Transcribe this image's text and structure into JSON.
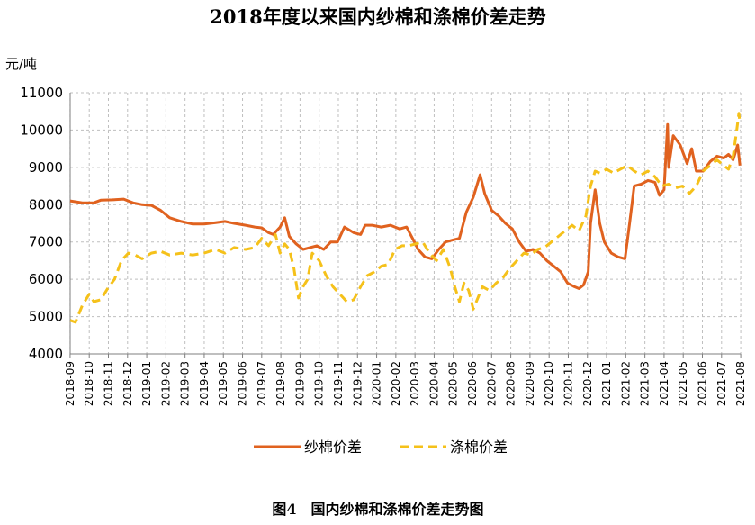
{
  "title": "2018年度以来国内纱棉和涤棉价差走势",
  "unit_label": "元/吨",
  "caption": "图4　国内纱棉和涤棉价差走势图",
  "colors": {
    "yarn": "#e0621f",
    "poly": "#f5c11a",
    "grid": "#bfbfbf",
    "axis": "#7f7f7f"
  },
  "chart_data": {
    "type": "line",
    "title": "2018年度以来国内纱棉和涤棉价差走势",
    "ylabel": "元/吨",
    "ylim": [
      4000,
      11000
    ],
    "yticks": [
      4000,
      5000,
      6000,
      7000,
      8000,
      9000,
      10000,
      11000
    ],
    "x_range": [
      2018.667,
      2021.583
    ],
    "categories": [
      "2018-09",
      "2018-10",
      "2018-11",
      "2018-12",
      "2019-01",
      "2019-02",
      "2019-03",
      "2019-04",
      "2019-05",
      "2019-06",
      "2019-07",
      "2019-08",
      "2019-09",
      "2019-10",
      "2019-11",
      "2019-12",
      "2020-01",
      "2020-02",
      "2020-03",
      "2020-04",
      "2020-05",
      "2020-06",
      "2020-07",
      "2020-08",
      "2020-09",
      "2020-10",
      "2020-11",
      "2020-12",
      "2021-01",
      "2021-02",
      "2021-03",
      "2021-04",
      "2021-05",
      "2021-06",
      "2021-07",
      "2021-08"
    ],
    "grid": true,
    "legend": "bottom",
    "series": [
      {
        "name": "纱棉价差",
        "style": "solid",
        "points": [
          [
            2018.667,
            8100
          ],
          [
            2018.72,
            8050
          ],
          [
            2018.77,
            8050
          ],
          [
            2018.8,
            8120
          ],
          [
            2018.85,
            8130
          ],
          [
            2018.9,
            8150
          ],
          [
            2018.94,
            8050
          ],
          [
            2018.98,
            8000
          ],
          [
            2019.02,
            7980
          ],
          [
            2019.06,
            7850
          ],
          [
            2019.1,
            7650
          ],
          [
            2019.15,
            7550
          ],
          [
            2019.2,
            7480
          ],
          [
            2019.25,
            7480
          ],
          [
            2019.3,
            7520
          ],
          [
            2019.34,
            7550
          ],
          [
            2019.38,
            7500
          ],
          [
            2019.43,
            7450
          ],
          [
            2019.47,
            7400
          ],
          [
            2019.5,
            7380
          ],
          [
            2019.53,
            7250
          ],
          [
            2019.55,
            7200
          ],
          [
            2019.58,
            7400
          ],
          [
            2019.6,
            7650
          ],
          [
            2019.62,
            7150
          ],
          [
            2019.65,
            6950
          ],
          [
            2019.68,
            6800
          ],
          [
            2019.71,
            6850
          ],
          [
            2019.74,
            6900
          ],
          [
            2019.77,
            6800
          ],
          [
            2019.8,
            7000
          ],
          [
            2019.83,
            7000
          ],
          [
            2019.86,
            7400
          ],
          [
            2019.9,
            7250
          ],
          [
            2019.93,
            7200
          ],
          [
            2019.95,
            7450
          ],
          [
            2019.98,
            7450
          ],
          [
            2020.02,
            7400
          ],
          [
            2020.06,
            7450
          ],
          [
            2020.1,
            7350
          ],
          [
            2020.13,
            7400
          ],
          [
            2020.16,
            7050
          ],
          [
            2020.18,
            6800
          ],
          [
            2020.21,
            6600
          ],
          [
            2020.24,
            6550
          ],
          [
            2020.27,
            6800
          ],
          [
            2020.3,
            7000
          ],
          [
            2020.33,
            7050
          ],
          [
            2020.36,
            7100
          ],
          [
            2020.39,
            7800
          ],
          [
            2020.42,
            8200
          ],
          [
            2020.45,
            8800
          ],
          [
            2020.47,
            8300
          ],
          [
            2020.5,
            7850
          ],
          [
            2020.53,
            7700
          ],
          [
            2020.56,
            7500
          ],
          [
            2020.59,
            7350
          ],
          [
            2020.62,
            7000
          ],
          [
            2020.65,
            6750
          ],
          [
            2020.68,
            6800
          ],
          [
            2020.71,
            6700
          ],
          [
            2020.74,
            6500
          ],
          [
            2020.77,
            6350
          ],
          [
            2020.8,
            6200
          ],
          [
            2020.83,
            5900
          ],
          [
            2020.86,
            5800
          ],
          [
            2020.88,
            5750
          ],
          [
            2020.9,
            5850
          ],
          [
            2020.92,
            6200
          ],
          [
            2020.93,
            7500
          ],
          [
            2020.95,
            8400
          ],
          [
            2020.97,
            7500
          ],
          [
            2020.99,
            7000
          ],
          [
            2021.02,
            6700
          ],
          [
            2021.05,
            6600
          ],
          [
            2021.08,
            6550
          ],
          [
            2021.1,
            7500
          ],
          [
            2021.12,
            8500
          ],
          [
            2021.15,
            8550
          ],
          [
            2021.18,
            8650
          ],
          [
            2021.21,
            8600
          ],
          [
            2021.23,
            8250
          ],
          [
            2021.25,
            8400
          ],
          [
            2021.265,
            10150
          ],
          [
            2021.27,
            9000
          ],
          [
            2021.29,
            9850
          ],
          [
            2021.32,
            9600
          ],
          [
            2021.35,
            9100
          ],
          [
            2021.37,
            9500
          ],
          [
            2021.39,
            8900
          ],
          [
            2021.42,
            8900
          ],
          [
            2021.45,
            9150
          ],
          [
            2021.48,
            9300
          ],
          [
            2021.51,
            9250
          ],
          [
            2021.53,
            9350
          ],
          [
            2021.55,
            9200
          ],
          [
            2021.57,
            9600
          ],
          [
            2021.58,
            9050
          ]
        ]
      },
      {
        "name": "涤棉价差",
        "style": "dashed",
        "points": [
          [
            2018.667,
            4900
          ],
          [
            2018.69,
            4850
          ],
          [
            2018.72,
            5300
          ],
          [
            2018.75,
            5600
          ],
          [
            2018.77,
            5400
          ],
          [
            2018.8,
            5450
          ],
          [
            2018.83,
            5750
          ],
          [
            2018.86,
            6000
          ],
          [
            2018.89,
            6500
          ],
          [
            2018.92,
            6700
          ],
          [
            2018.95,
            6650
          ],
          [
            2018.98,
            6550
          ],
          [
            2019.02,
            6700
          ],
          [
            2019.06,
            6750
          ],
          [
            2019.1,
            6650
          ],
          [
            2019.15,
            6700
          ],
          [
            2019.2,
            6650
          ],
          [
            2019.25,
            6700
          ],
          [
            2019.3,
            6800
          ],
          [
            2019.34,
            6700
          ],
          [
            2019.38,
            6850
          ],
          [
            2019.43,
            6800
          ],
          [
            2019.47,
            6850
          ],
          [
            2019.5,
            7100
          ],
          [
            2019.53,
            6900
          ],
          [
            2019.56,
            7200
          ],
          [
            2019.58,
            6700
          ],
          [
            2019.6,
            6950
          ],
          [
            2019.62,
            6800
          ],
          [
            2019.64,
            6300
          ],
          [
            2019.66,
            5500
          ],
          [
            2019.68,
            5800
          ],
          [
            2019.7,
            6000
          ],
          [
            2019.72,
            6700
          ],
          [
            2019.75,
            6500
          ],
          [
            2019.78,
            6100
          ],
          [
            2019.81,
            5800
          ],
          [
            2019.84,
            5600
          ],
          [
            2019.87,
            5400
          ],
          [
            2019.9,
            5450
          ],
          [
            2019.93,
            5800
          ],
          [
            2019.96,
            6100
          ],
          [
            2019.99,
            6200
          ],
          [
            2020.02,
            6350
          ],
          [
            2020.05,
            6400
          ],
          [
            2020.08,
            6800
          ],
          [
            2020.11,
            6900
          ],
          [
            2020.14,
            6900
          ],
          [
            2020.17,
            6950
          ],
          [
            2020.2,
            7000
          ],
          [
            2020.23,
            6700
          ],
          [
            2020.26,
            6500
          ],
          [
            2020.29,
            6800
          ],
          [
            2020.32,
            6300
          ],
          [
            2020.34,
            5800
          ],
          [
            2020.36,
            5400
          ],
          [
            2020.38,
            5900
          ],
          [
            2020.4,
            5700
          ],
          [
            2020.42,
            5200
          ],
          [
            2020.44,
            5500
          ],
          [
            2020.46,
            5800
          ],
          [
            2020.49,
            5700
          ],
          [
            2020.52,
            5900
          ],
          [
            2020.55,
            6050
          ],
          [
            2020.58,
            6300
          ],
          [
            2020.61,
            6500
          ],
          [
            2020.64,
            6700
          ],
          [
            2020.67,
            6650
          ],
          [
            2020.7,
            6800
          ],
          [
            2020.73,
            6850
          ],
          [
            2020.76,
            7000
          ],
          [
            2020.79,
            7150
          ],
          [
            2020.82,
            7300
          ],
          [
            2020.85,
            7450
          ],
          [
            2020.88,
            7300
          ],
          [
            2020.91,
            7700
          ],
          [
            2020.93,
            8500
          ],
          [
            2020.95,
            8900
          ],
          [
            2020.97,
            8850
          ],
          [
            2021.0,
            8950
          ],
          [
            2021.03,
            8850
          ],
          [
            2021.06,
            8950
          ],
          [
            2021.09,
            9050
          ],
          [
            2021.12,
            8900
          ],
          [
            2021.15,
            8800
          ],
          [
            2021.18,
            8900
          ],
          [
            2021.21,
            8750
          ],
          [
            2021.24,
            8500
          ],
          [
            2021.27,
            8550
          ],
          [
            2021.3,
            8450
          ],
          [
            2021.33,
            8500
          ],
          [
            2021.36,
            8300
          ],
          [
            2021.39,
            8500
          ],
          [
            2021.42,
            8900
          ],
          [
            2021.45,
            9050
          ],
          [
            2021.48,
            9200
          ],
          [
            2021.51,
            9050
          ],
          [
            2021.53,
            8950
          ],
          [
            2021.55,
            9300
          ],
          [
            2021.565,
            9950
          ],
          [
            2021.575,
            10450
          ],
          [
            2021.58,
            10200
          ]
        ]
      }
    ]
  }
}
